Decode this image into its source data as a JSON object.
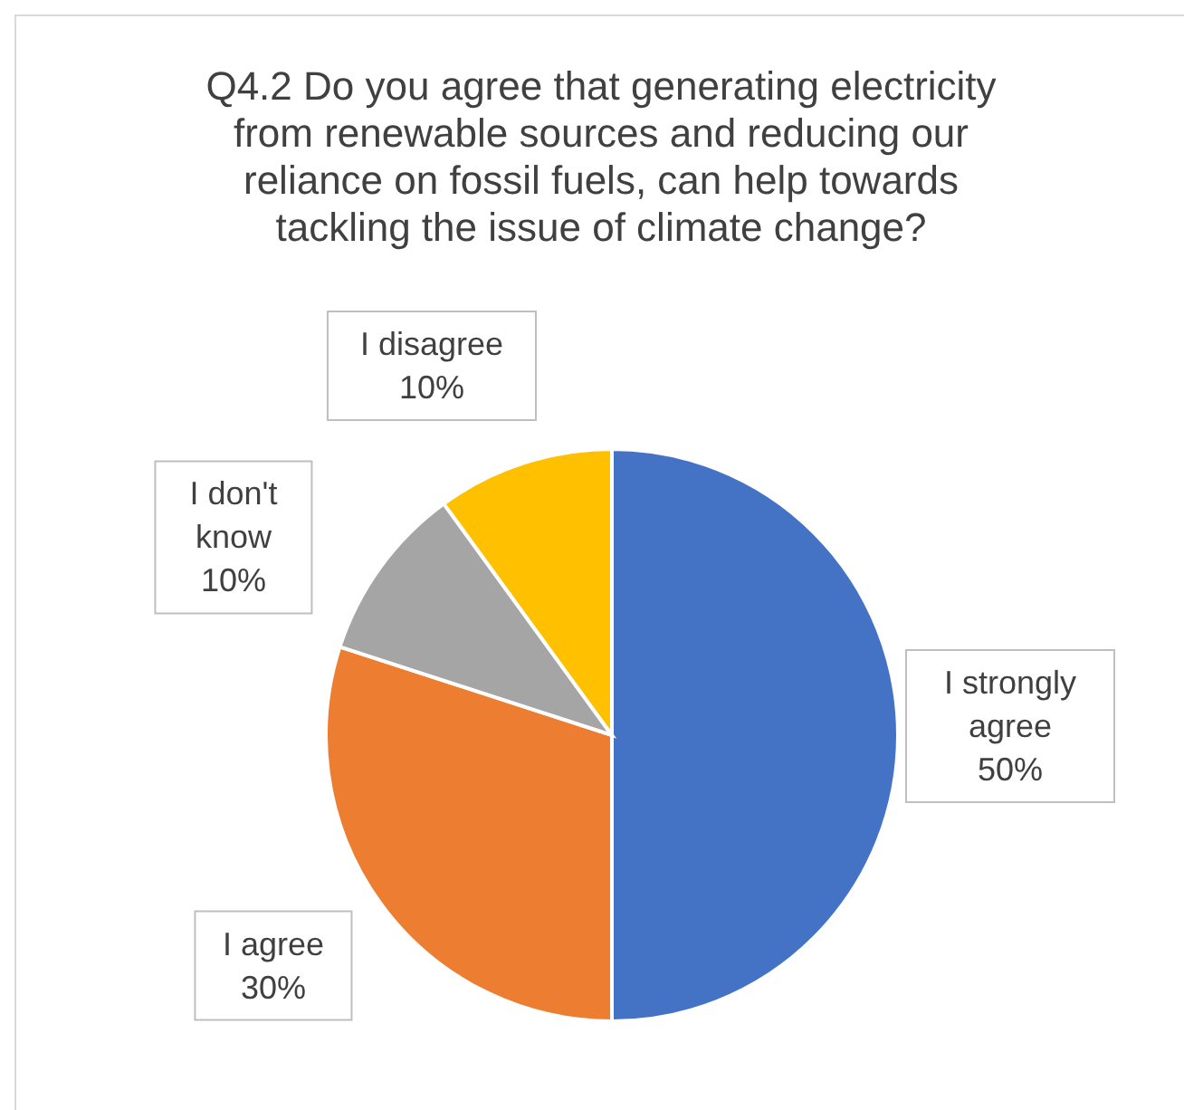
{
  "chart_data": {
    "type": "pie",
    "title": "Q4.2 Do you agree that generating electricity from renewable sources and reducing our reliance on fossil fuels, can help towards tackling the issue of climate change?",
    "categories": [
      "I strongly agree",
      "I agree",
      "I don't know",
      "I disagree"
    ],
    "values": [
      50,
      30,
      10,
      10
    ],
    "value_labels": [
      "50%",
      "30%",
      "10%",
      "10%"
    ],
    "colors": [
      "#4472c4",
      "#ed7d31",
      "#a5a5a5",
      "#ffc000"
    ],
    "legend": false
  }
}
